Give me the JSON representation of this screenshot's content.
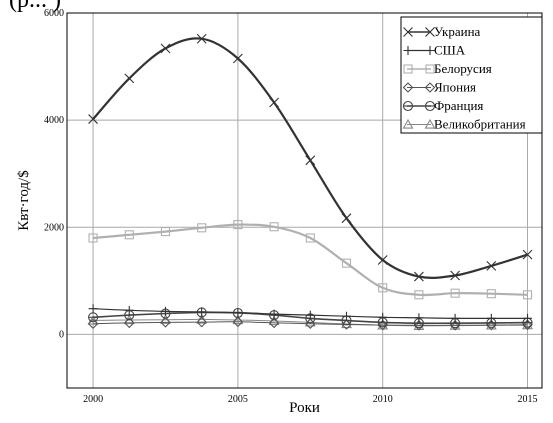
{
  "top_fragment": "(р... )",
  "chart_data": {
    "type": "line",
    "title": "",
    "xlabel": "Роки",
    "ylabel": "Квт·год/$",
    "xlim": [
      1999.1,
      2015.5
    ],
    "ylim": [
      -1000,
      6000
    ],
    "xticks": [
      2000,
      2005,
      2010,
      2015
    ],
    "yticks": [
      0,
      2000,
      4000,
      6000
    ],
    "grid": true,
    "legend_position": "top-right",
    "series": [
      {
        "name": "Украина",
        "marker": "x",
        "color": "#333333",
        "width": 2.2,
        "x": [
          2000,
          2001.25,
          2002.5,
          2003.75,
          2005,
          2006.25,
          2007.5,
          2008.75,
          2010,
          2011.25,
          2012.5,
          2013.75,
          2015
        ],
        "y": [
          4020,
          4780,
          5340,
          5520,
          5150,
          4330,
          3250,
          2170,
          1390,
          1080,
          1100,
          1280,
          1490
        ]
      },
      {
        "name": "США",
        "marker": "+",
        "color": "#333333",
        "width": 1.2,
        "x": [
          2000,
          2001.25,
          2002.5,
          2003.75,
          2005,
          2006.25,
          2007.5,
          2008.75,
          2010,
          2011.25,
          2012.5,
          2013.75,
          2015
        ],
        "y": [
          480,
          450,
          430,
          420,
          410,
          380,
          360,
          340,
          320,
          310,
          300,
          300,
          300
        ]
      },
      {
        "name": "Белорусия",
        "marker": "square",
        "color": "#b0b0b0",
        "width": 2.2,
        "x": [
          2000,
          2001.25,
          2002.5,
          2003.75,
          2005,
          2006.25,
          2007.5,
          2008.75,
          2010,
          2011.25,
          2012.5,
          2013.75,
          2015
        ],
        "y": [
          1800,
          1860,
          1920,
          1990,
          2050,
          2010,
          1800,
          1330,
          870,
          740,
          770,
          760,
          740
        ]
      },
      {
        "name": "Япония",
        "marker": "diamond",
        "color": "#555555",
        "width": 1.0,
        "x": [
          2000,
          2001.25,
          2002.5,
          2003.75,
          2005,
          2006.25,
          2007.5,
          2008.75,
          2010,
          2011.25,
          2012.5,
          2013.75,
          2015
        ],
        "y": [
          200,
          215,
          225,
          230,
          235,
          215,
          200,
          185,
          175,
          170,
          170,
          175,
          180
        ]
      },
      {
        "name": "Франция",
        "marker": "circle-bar",
        "color": "#444444",
        "width": 1.6,
        "x": [
          2000,
          2001.25,
          2002.5,
          2003.75,
          2005,
          2006.25,
          2007.5,
          2008.75,
          2010,
          2011.25,
          2012.5,
          2013.75,
          2015
        ],
        "y": [
          320,
          360,
          390,
          410,
          400,
          360,
          300,
          260,
          225,
          210,
          210,
          215,
          220
        ]
      },
      {
        "name": "Великобритания",
        "marker": "triangle",
        "color": "#888888",
        "width": 1.0,
        "x": [
          2000,
          2001.25,
          2002.5,
          2003.75,
          2005,
          2006.25,
          2007.5,
          2008.75,
          2010,
          2011.25,
          2012.5,
          2013.75,
          2015
        ],
        "y": [
          260,
          270,
          275,
          280,
          270,
          250,
          225,
          195,
          170,
          160,
          165,
          170,
          175
        ]
      }
    ]
  }
}
